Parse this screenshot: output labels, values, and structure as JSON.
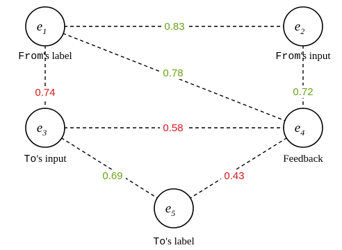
{
  "colors": {
    "positive": "#6aa121",
    "negative": "#d6181e"
  },
  "nodes": [
    {
      "id": "e1",
      "label": "e",
      "sub": "1"
    },
    {
      "id": "e2",
      "label": "e",
      "sub": "2"
    },
    {
      "id": "e3",
      "label": "e",
      "sub": "3"
    },
    {
      "id": "e4",
      "label": "e",
      "sub": "4"
    },
    {
      "id": "e5",
      "label": "e",
      "sub": "5"
    }
  ],
  "captions": {
    "e1": {
      "mono": "From",
      "rest": "'s label"
    },
    "e2": {
      "mono": "From",
      "rest": "'s input"
    },
    "e3": {
      "mono": "To",
      "rest": "'s input"
    },
    "e4": {
      "mono": "",
      "rest": "Feedback"
    },
    "e5": {
      "mono": "To",
      "rest": "'s label"
    }
  },
  "edges": [
    {
      "from": "e1",
      "to": "e2",
      "weight": "0.83",
      "polarity": "positive"
    },
    {
      "from": "e1",
      "to": "e3",
      "weight": "0.74",
      "polarity": "negative"
    },
    {
      "from": "e1",
      "to": "e4",
      "weight": "0.78",
      "polarity": "positive"
    },
    {
      "from": "e2",
      "to": "e4",
      "weight": "0.72",
      "polarity": "positive"
    },
    {
      "from": "e3",
      "to": "e4",
      "weight": "0.58",
      "polarity": "negative"
    },
    {
      "from": "e3",
      "to": "e5",
      "weight": "0.69",
      "polarity": "positive"
    },
    {
      "from": "e4",
      "to": "e5",
      "weight": "0.43",
      "polarity": "negative"
    }
  ]
}
